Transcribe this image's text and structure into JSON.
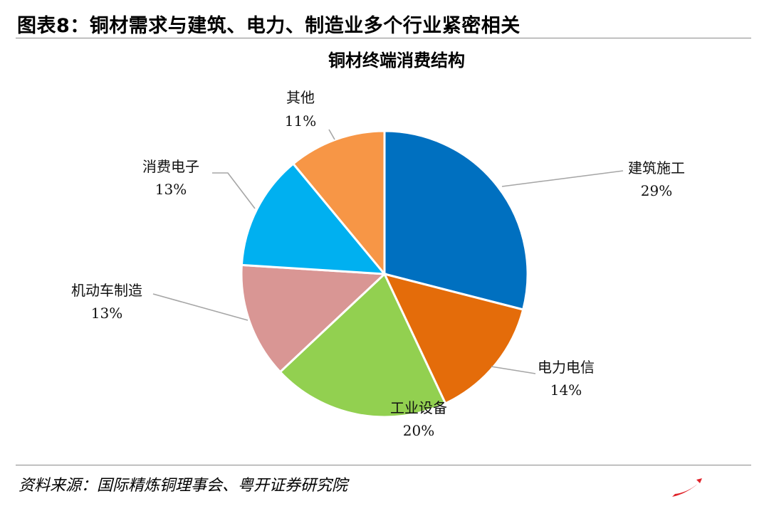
{
  "header": {
    "figure_title": "图表8：铜材需求与建筑、电力、制造业多个行业紧密相关"
  },
  "footer": {
    "source": "资料来源：国际精炼铜理事会、粤开证券研究院"
  },
  "chart_data": {
    "type": "pie",
    "title": "铜材终端消费结构",
    "slices": [
      {
        "label": "建筑施工",
        "value": 29,
        "value_label": "29%",
        "color": "#0070C0"
      },
      {
        "label": "电力电信",
        "value": 14,
        "value_label": "14%",
        "color": "#E46C0A"
      },
      {
        "label": "工业设备",
        "value": 20,
        "value_label": "20%",
        "color": "#92D050"
      },
      {
        "label": "机动车制造",
        "value": 13,
        "value_label": "13%",
        "color": "#D99694"
      },
      {
        "label": "消费电子",
        "value": 13,
        "value_label": "13%",
        "color": "#00B0F0"
      },
      {
        "label": "其他",
        "value": 11,
        "value_label": "11%",
        "color": "#F79646"
      }
    ],
    "start": "12 o'clock",
    "direction": "clockwise",
    "leader_lines": true,
    "legend": "none"
  }
}
